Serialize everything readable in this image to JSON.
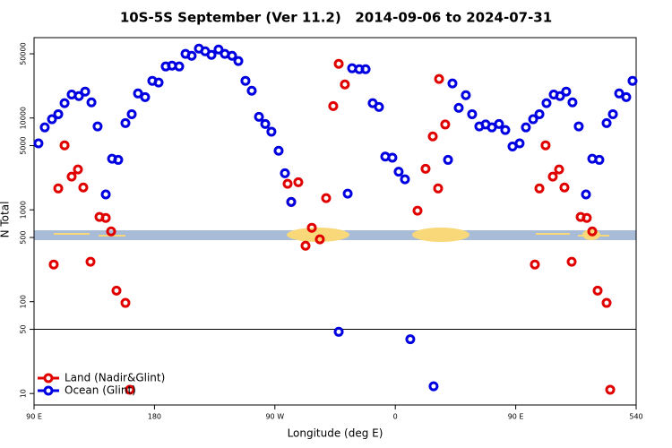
{
  "chart_data": {
    "type": "scatter",
    "title": "10S-5S September (Ver 11.2)   2014-09-06 to 2024-07-31",
    "x_label": "Longitude (deg E)",
    "y_label": "N Total",
    "log_y": true,
    "legend": "bottom-left",
    "hline": 50,
    "xlim": [
      90,
      540
    ],
    "xticks": [
      {
        "value": 90,
        "label": "90 E"
      },
      180,
      {
        "value": 270,
        "label": "90 W"
      },
      {
        "value": 360,
        "label": "0"
      },
      {
        "value": 450,
        "label": "90 E"
      },
      540
    ],
    "ylim": [
      7.5,
      75000
    ],
    "yticks": [
      10,
      50,
      100,
      500,
      1000,
      5000,
      10000,
      50000
    ],
    "series": [
      {
        "name": "Land (Nadir&Glint)",
        "color": "#e00000",
        "x": [
          104.7,
          108.1,
          112.8,
          118.1,
          122.8,
          126.8,
          132.2,
          138.9,
          143.6,
          147.6,
          151.6,
          158.3,
          161.6,
          279.5,
          282.2,
          287.5,
          292.9,
          297.6,
          303.6,
          308.3,
          313.6,
          317.7,
          322.3,
          376.6,
          382.6,
          388,
          392,
          392.7,
          397.3,
          464.3,
          467.7,
          472.3,
          477.7,
          482.4,
          486.4,
          491.8,
          498.5,
          503.1,
          507.2,
          511.2,
          517.9,
          520.6
        ],
        "values": [
          254,
          1710,
          5040,
          2300,
          2750,
          1750,
          272,
          836,
          817,
          583,
          132,
          97,
          11,
          1920,
          1220,
          2000,
          407,
          638,
          477,
          1340,
          13500,
          38900,
          23200,
          980,
          2800,
          6300,
          1710,
          26600,
          8500,
          254,
          1710,
          5040,
          2300,
          2750,
          1750,
          272,
          836,
          817,
          583,
          132,
          97,
          11
        ]
      },
      {
        "name": "Ocean (Glint)",
        "color": "#0000e0",
        "x": [
          93.3,
          98,
          103.4,
          108.1,
          112.8,
          118.1,
          123.5,
          128.2,
          132.9,
          137.5,
          143.6,
          148.3,
          152.9,
          158.3,
          163,
          167.7,
          173,
          178.4,
          183.1,
          188.4,
          193.1,
          198.5,
          203.2,
          207.8,
          213.2,
          217.9,
          222.6,
          227.9,
          232.6,
          238,
          242.7,
          248,
          252.7,
          258.1,
          262.8,
          267.4,
          272.8,
          277.5,
          282.2,
          317.7,
          324.4,
          327.7,
          333.1,
          337.8,
          343.1,
          347.8,
          352.5,
          357.8,
          362.5,
          367.2,
          371.2,
          388.6,
          399.4,
          402.7,
          407.4,
          412.7,
          417.4,
          422.8,
          427.5,
          432.2,
          437.5,
          442.2,
          447.6,
          452.9,
          457.6,
          463,
          467.7,
          473,
          478.4,
          483.1,
          487.7,
          492.4,
          497.1,
          502.5,
          507.2,
          512.5,
          517.9,
          522.6,
          527.3,
          532.6,
          537.3
        ],
        "values": [
          5300,
          7900,
          9700,
          11000,
          14500,
          18000,
          17300,
          19400,
          14800,
          8100,
          1470,
          3600,
          3500,
          8800,
          11000,
          18500,
          16900,
          25400,
          24300,
          36400,
          37200,
          36400,
          49900,
          47600,
          57000,
          53300,
          48700,
          55700,
          49900,
          47600,
          41700,
          25400,
          19800,
          10300,
          8600,
          7100,
          4400,
          2500,
          1220,
          47,
          1500,
          34800,
          34000,
          34000,
          14500,
          13200,
          3800,
          3700,
          2600,
          2150,
          39,
          12,
          3500,
          23800,
          12900,
          17700,
          11000,
          8100,
          8500,
          7900,
          8600,
          7400,
          4900,
          5300,
          7900,
          9700,
          11000,
          14500,
          18000,
          17300,
          19400,
          14800,
          8100,
          1470,
          3600,
          3500,
          8800,
          11000,
          18500,
          16900,
          25400
        ]
      }
    ]
  }
}
